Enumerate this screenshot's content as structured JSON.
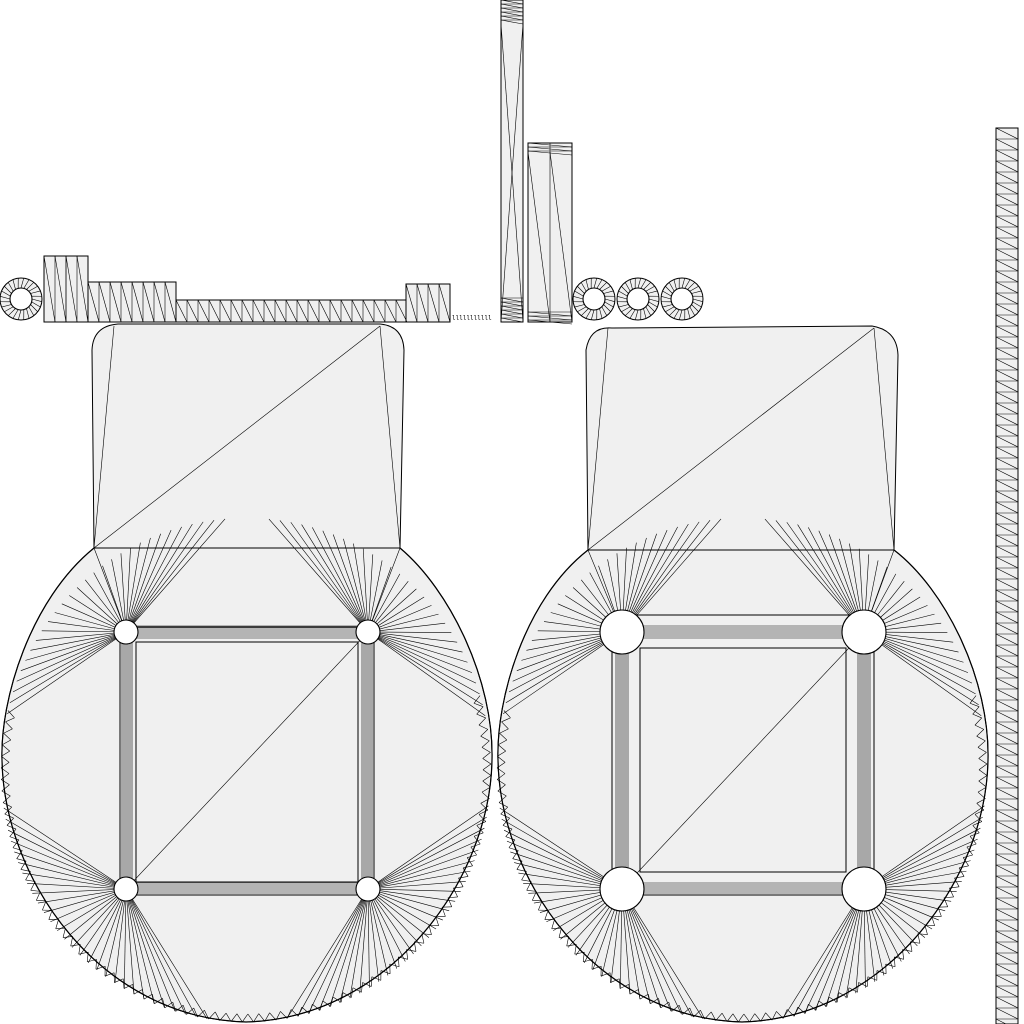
{
  "image": {
    "kind": "uv-wireframe-layout",
    "background": "#ffffff",
    "face_fill": "#f0f0f0",
    "edge_color": "#000000"
  },
  "islands": {
    "left_plate": {
      "label": "left-plate-island",
      "holes": 4
    },
    "right_plate": {
      "label": "right-plate-island",
      "holes": 4
    },
    "small_rings": {
      "label": "ring-islands",
      "count": 4
    },
    "strips": {
      "label": "strip-islands"
    },
    "tall_strip": {
      "label": "tall-vertical-strip"
    }
  },
  "tiny_label": "lllllllllll"
}
